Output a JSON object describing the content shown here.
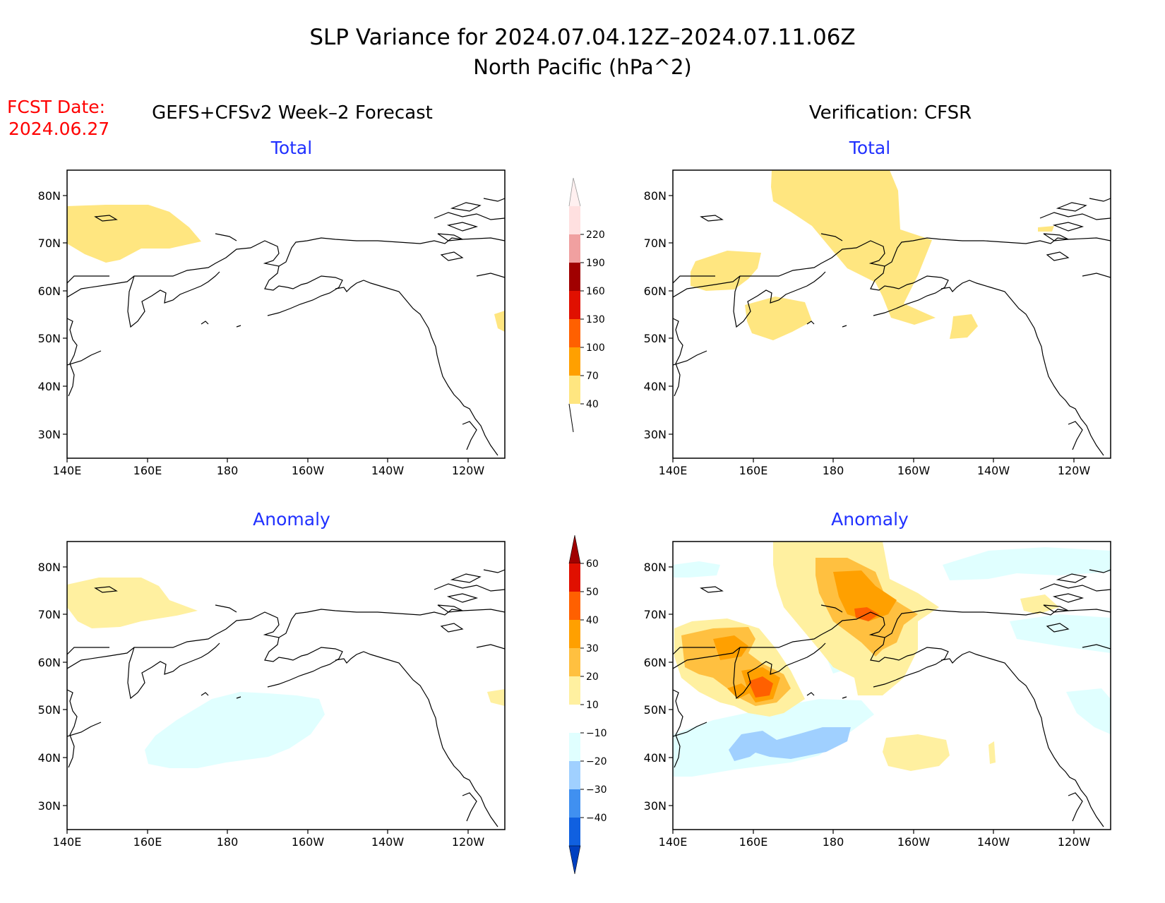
{
  "title": {
    "line1": "SLP Variance for 2024.07.04.12Z–2024.07.11.06Z",
    "line2": "North Pacific (hPa^2)"
  },
  "fcst": {
    "label": "FCST Date:",
    "date": "2024.06.27"
  },
  "columns": {
    "forecast": "GEFS+CFSv2 Week–2 Forecast",
    "verification": "Verification: CFSR"
  },
  "panel_titles": {
    "total": "Total",
    "anomaly": "Anomaly"
  },
  "axes": {
    "lat_labels": [
      "80N",
      "70N",
      "60N",
      "50N",
      "40N",
      "30N"
    ],
    "lon_labels": [
      "140E",
      "160E",
      "180",
      "160W",
      "140W",
      "120W"
    ]
  },
  "colorbars": {
    "total": {
      "levels": [
        "40",
        "70",
        "100",
        "130",
        "160",
        "190",
        "220"
      ],
      "colors": [
        "#ffe680",
        "#ffa000",
        "#ff6000",
        "#e01000",
        "#a00000",
        "#f0a0a0",
        "#ffe0e0"
      ]
    },
    "anomaly": {
      "levels": [
        "60",
        "50",
        "40",
        "30",
        "20",
        "10",
        "−10",
        "−20",
        "−30",
        "−40"
      ],
      "colors": [
        "#a00000",
        "#e01000",
        "#ff6000",
        "#ffa000",
        "#ffc040",
        "#fff0a0",
        "#ffffff",
        "#e0ffff",
        "#a0d0ff",
        "#4090f0",
        "#1060e0",
        "#0040c0"
      ]
    }
  },
  "colors": {
    "title_text": "#000000",
    "panel_title": "#2030ff",
    "fcst_text": "#ff0000"
  }
}
